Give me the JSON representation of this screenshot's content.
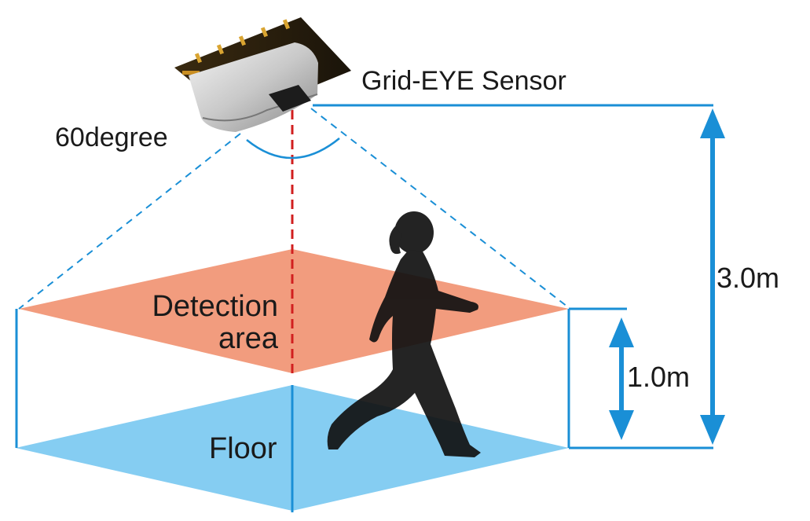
{
  "labels": {
    "sensor": "Grid-EYE Sensor",
    "angle": "60degree",
    "detection_line1": "Detection",
    "detection_line2": "area",
    "floor": "Floor",
    "sensor_height": "3.0m",
    "detection_height": "1.0m"
  },
  "colors": {
    "blue": "#1a8fd6",
    "floor_fill": "#85cdf2",
    "detection_fill": "#f29c7e",
    "center_line": "#d11f1f",
    "silhouette": "#111111"
  },
  "icons": {
    "sensor": "sensor-device-icon",
    "person": "walking-person-icon"
  }
}
